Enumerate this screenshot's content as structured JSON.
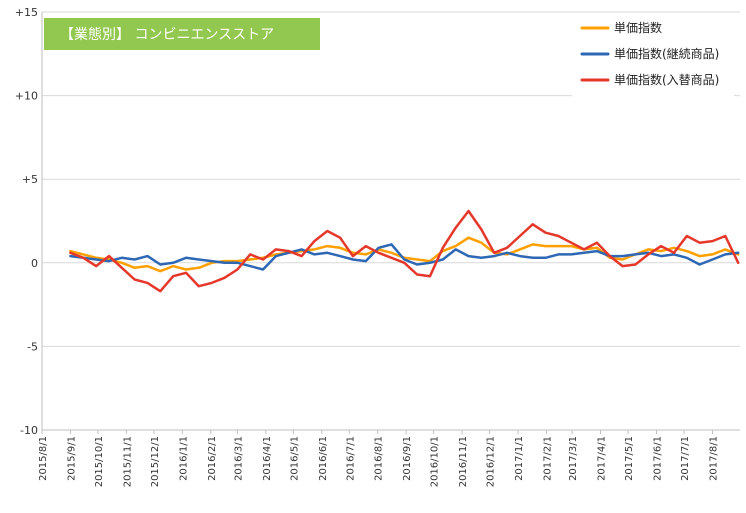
{
  "chart_data": {
    "type": "line",
    "title": "【業態別】 コンビニエンスストア",
    "colors": {
      "title_bg": "#92c84f",
      "grid": "#d9d9d9",
      "axis": "#bfbfbf"
    },
    "ylim": [
      -10,
      15
    ],
    "yticks": [
      "-10",
      "-5",
      "0",
      "+5",
      "+10",
      "+15"
    ],
    "ytick_values": [
      -10,
      -5,
      0,
      5,
      10,
      15
    ],
    "x_start": "2015/8/1",
    "x_end": "2017/8/31",
    "x_tick_labels": [
      "2015/8/1",
      "2015/9/1",
      "2015/10/1",
      "2015/11/1",
      "2015/12/1",
      "2016/1/1",
      "2016/2/1",
      "2016/3/1",
      "2016/4/1",
      "2016/5/1",
      "2016/6/1",
      "2016/7/1",
      "2016/8/1",
      "2016/9/1",
      "2016/10/1",
      "2016/11/1",
      "2016/12/1",
      "2017/1/1",
      "2017/2/1",
      "2017/3/1",
      "2017/4/1",
      "2017/5/1",
      "2017/6/1",
      "2017/7/1",
      "2017/8/1"
    ],
    "grid": true,
    "legend_position": "top-right",
    "series": [
      {
        "name": "単価指数",
        "color": "#ffa000",
        "points": [
          [
            "2015/9/1",
            0.7
          ],
          [
            "2015/9/15",
            0.5
          ],
          [
            "2015/9/29",
            0.3
          ],
          [
            "2015/10/13",
            0.2
          ],
          [
            "2015/10/27",
            0.0
          ],
          [
            "2015/11/10",
            -0.3
          ],
          [
            "2015/11/24",
            -0.2
          ],
          [
            "2015/12/8",
            -0.5
          ],
          [
            "2015/12/22",
            -0.2
          ],
          [
            "2016/1/5",
            -0.4
          ],
          [
            "2016/1/19",
            -0.3
          ],
          [
            "2016/2/2",
            0.0
          ],
          [
            "2016/2/16",
            0.1
          ],
          [
            "2016/3/1",
            0.1
          ],
          [
            "2016/3/15",
            0.2
          ],
          [
            "2016/3/29",
            0.3
          ],
          [
            "2016/4/12",
            0.5
          ],
          [
            "2016/4/26",
            0.6
          ],
          [
            "2016/5/10",
            0.7
          ],
          [
            "2016/5/24",
            0.8
          ],
          [
            "2016/6/7",
            1.0
          ],
          [
            "2016/6/21",
            0.9
          ],
          [
            "2016/7/5",
            0.6
          ],
          [
            "2016/7/19",
            0.5
          ],
          [
            "2016/8/2",
            0.8
          ],
          [
            "2016/8/16",
            0.6
          ],
          [
            "2016/8/30",
            0.3
          ],
          [
            "2016/9/13",
            0.2
          ],
          [
            "2016/9/27",
            0.1
          ],
          [
            "2016/10/11",
            0.7
          ],
          [
            "2016/10/25",
            1.0
          ],
          [
            "2016/11/8",
            1.5
          ],
          [
            "2016/11/22",
            1.2
          ],
          [
            "2016/12/6",
            0.6
          ],
          [
            "2016/12/20",
            0.5
          ],
          [
            "2017/1/3",
            0.8
          ],
          [
            "2017/1/17",
            1.1
          ],
          [
            "2017/1/31",
            1.0
          ],
          [
            "2017/2/14",
            1.0
          ],
          [
            "2017/2/28",
            1.0
          ],
          [
            "2017/3/14",
            0.8
          ],
          [
            "2017/3/28",
            0.9
          ],
          [
            "2017/4/11",
            0.3
          ],
          [
            "2017/4/25",
            0.2
          ],
          [
            "2017/5/9",
            0.5
          ],
          [
            "2017/5/23",
            0.8
          ],
          [
            "2017/6/6",
            0.7
          ],
          [
            "2017/6/20",
            0.9
          ],
          [
            "2017/7/4",
            0.7
          ],
          [
            "2017/7/18",
            0.4
          ],
          [
            "2017/8/1",
            0.5
          ],
          [
            "2017/8/15",
            0.8
          ],
          [
            "2017/8/29",
            0.5
          ]
        ]
      },
      {
        "name": "単価指数(継続商品)",
        "color": "#2e68b5",
        "points": [
          [
            "2015/9/1",
            0.4
          ],
          [
            "2015/9/15",
            0.3
          ],
          [
            "2015/9/29",
            0.2
          ],
          [
            "2015/10/13",
            0.1
          ],
          [
            "2015/10/27",
            0.3
          ],
          [
            "2015/11/10",
            0.2
          ],
          [
            "2015/11/24",
            0.4
          ],
          [
            "2015/12/8",
            -0.1
          ],
          [
            "2015/12/22",
            0.0
          ],
          [
            "2016/1/5",
            0.3
          ],
          [
            "2016/1/19",
            0.2
          ],
          [
            "2016/2/2",
            0.1
          ],
          [
            "2016/2/16",
            0.0
          ],
          [
            "2016/3/1",
            0.0
          ],
          [
            "2016/3/15",
            -0.2
          ],
          [
            "2016/3/29",
            -0.4
          ],
          [
            "2016/4/12",
            0.4
          ],
          [
            "2016/4/26",
            0.6
          ],
          [
            "2016/5/10",
            0.8
          ],
          [
            "2016/5/24",
            0.5
          ],
          [
            "2016/6/7",
            0.6
          ],
          [
            "2016/6/21",
            0.4
          ],
          [
            "2016/7/5",
            0.2
          ],
          [
            "2016/7/19",
            0.1
          ],
          [
            "2016/8/2",
            0.9
          ],
          [
            "2016/8/16",
            1.1
          ],
          [
            "2016/8/30",
            0.2
          ],
          [
            "2016/9/13",
            -0.1
          ],
          [
            "2016/9/27",
            0.0
          ],
          [
            "2016/10/11",
            0.2
          ],
          [
            "2016/10/25",
            0.8
          ],
          [
            "2016/11/8",
            0.4
          ],
          [
            "2016/11/22",
            0.3
          ],
          [
            "2016/12/6",
            0.4
          ],
          [
            "2016/12/20",
            0.6
          ],
          [
            "2017/1/3",
            0.4
          ],
          [
            "2017/1/17",
            0.3
          ],
          [
            "2017/1/31",
            0.3
          ],
          [
            "2017/2/14",
            0.5
          ],
          [
            "2017/2/28",
            0.5
          ],
          [
            "2017/3/14",
            0.6
          ],
          [
            "2017/3/28",
            0.7
          ],
          [
            "2017/4/11",
            0.4
          ],
          [
            "2017/4/25",
            0.4
          ],
          [
            "2017/5/9",
            0.5
          ],
          [
            "2017/5/23",
            0.6
          ],
          [
            "2017/6/6",
            0.4
          ],
          [
            "2017/6/20",
            0.5
          ],
          [
            "2017/7/4",
            0.3
          ],
          [
            "2017/7/18",
            -0.1
          ],
          [
            "2017/8/1",
            0.2
          ],
          [
            "2017/8/15",
            0.5
          ],
          [
            "2017/8/29",
            0.6
          ]
        ]
      },
      {
        "name": "単価指数(入替商品)",
        "color": "#e5382a",
        "points": [
          [
            "2015/9/1",
            0.6
          ],
          [
            "2015/9/15",
            0.3
          ],
          [
            "2015/9/29",
            -0.2
          ],
          [
            "2015/10/13",
            0.4
          ],
          [
            "2015/10/27",
            -0.3
          ],
          [
            "2015/11/10",
            -1.0
          ],
          [
            "2015/11/24",
            -1.2
          ],
          [
            "2015/12/8",
            -1.7
          ],
          [
            "2015/12/22",
            -0.8
          ],
          [
            "2016/1/5",
            -0.6
          ],
          [
            "2016/1/19",
            -1.4
          ],
          [
            "2016/2/2",
            -1.2
          ],
          [
            "2016/2/16",
            -0.9
          ],
          [
            "2016/3/1",
            -0.4
          ],
          [
            "2016/3/15",
            0.5
          ],
          [
            "2016/3/29",
            0.2
          ],
          [
            "2016/4/12",
            0.8
          ],
          [
            "2016/4/26",
            0.7
          ],
          [
            "2016/5/10",
            0.4
          ],
          [
            "2016/5/24",
            1.3
          ],
          [
            "2016/6/7",
            1.9
          ],
          [
            "2016/6/21",
            1.5
          ],
          [
            "2016/7/5",
            0.4
          ],
          [
            "2016/7/19",
            1.0
          ],
          [
            "2016/8/2",
            0.6
          ],
          [
            "2016/8/16",
            0.3
          ],
          [
            "2016/8/30",
            0.0
          ],
          [
            "2016/9/13",
            -0.7
          ],
          [
            "2016/9/27",
            -0.8
          ],
          [
            "2016/10/11",
            0.9
          ],
          [
            "2016/10/25",
            2.1
          ],
          [
            "2016/11/8",
            3.1
          ],
          [
            "2016/11/22",
            2.0
          ],
          [
            "2016/12/6",
            0.6
          ],
          [
            "2016/12/20",
            0.9
          ],
          [
            "2017/1/3",
            1.6
          ],
          [
            "2017/1/17",
            2.3
          ],
          [
            "2017/1/31",
            1.8
          ],
          [
            "2017/2/14",
            1.6
          ],
          [
            "2017/2/28",
            1.2
          ],
          [
            "2017/3/14",
            0.8
          ],
          [
            "2017/3/28",
            1.2
          ],
          [
            "2017/4/11",
            0.4
          ],
          [
            "2017/4/25",
            -0.2
          ],
          [
            "2017/5/9",
            -0.1
          ],
          [
            "2017/5/23",
            0.5
          ],
          [
            "2017/6/6",
            1.0
          ],
          [
            "2017/6/20",
            0.6
          ],
          [
            "2017/7/4",
            1.6
          ],
          [
            "2017/7/18",
            1.2
          ],
          [
            "2017/8/1",
            1.3
          ],
          [
            "2017/8/15",
            1.6
          ],
          [
            "2017/8/29",
            0.0
          ]
        ]
      }
    ]
  }
}
